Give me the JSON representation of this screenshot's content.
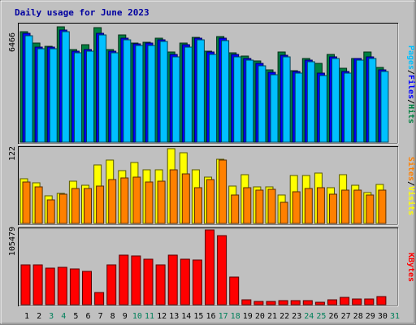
{
  "chart_data": [
    {
      "type": "bar",
      "title": "Daily usage for June 2023",
      "categories": [
        "1",
        "2",
        "3",
        "4",
        "5",
        "6",
        "7",
        "8",
        "9",
        "10",
        "11",
        "12",
        "13",
        "14",
        "15",
        "16",
        "17",
        "18",
        "19",
        "20",
        "21",
        "22",
        "23",
        "24",
        "25",
        "26",
        "27",
        "28",
        "29",
        "30",
        "31"
      ],
      "weekend_days": [
        "3",
        "4",
        "10",
        "11",
        "17",
        "18",
        "24",
        "25",
        "31"
      ],
      "ymax_label": "6466",
      "ylim": [
        0,
        6466
      ],
      "right_label": [
        "Pages",
        "Files",
        "Hits"
      ],
      "series": [
        {
          "name": "Hits",
          "color": "#008040",
          "values": [
            6200,
            5560,
            5380,
            6466,
            5200,
            5450,
            6400,
            5200,
            6020,
            5560,
            5600,
            5830,
            5050,
            5570,
            5860,
            5100,
            5900,
            5000,
            4830,
            4550,
            4040,
            5060,
            4000,
            4700,
            4400,
            4910,
            4140,
            4690,
            5050,
            4180,
            null
          ]
        },
        {
          "name": "Files",
          "color": "#0000ff",
          "values": [
            6080,
            5350,
            5320,
            6300,
            5120,
            5210,
            6100,
            5120,
            5840,
            5500,
            5540,
            5730,
            4900,
            5450,
            5830,
            5040,
            5810,
            4900,
            4700,
            4400,
            3900,
            4880,
            3950,
            4590,
            3850,
            4800,
            3950,
            4700,
            4790,
            4040,
            null
          ]
        },
        {
          "name": "Pages",
          "color": "#00c0ff",
          "values": [
            5980,
            5250,
            5220,
            6200,
            5020,
            5110,
            6000,
            5020,
            5740,
            5400,
            5440,
            5630,
            4800,
            5350,
            5730,
            4940,
            5710,
            4800,
            4600,
            4300,
            3800,
            4780,
            3850,
            4490,
            3750,
            4700,
            3850,
            4600,
            4690,
            3940,
            null
          ]
        }
      ]
    },
    {
      "type": "bar",
      "categories": [
        "1",
        "2",
        "3",
        "4",
        "5",
        "6",
        "7",
        "8",
        "9",
        "10",
        "11",
        "12",
        "13",
        "14",
        "15",
        "16",
        "17",
        "18",
        "19",
        "20",
        "21",
        "22",
        "23",
        "24",
        "25",
        "26",
        "27",
        "28",
        "29",
        "30",
        "31"
      ],
      "ymax_label": "122",
      "ylim": [
        0,
        122
      ],
      "right_label": [
        "Sites",
        "Visits"
      ],
      "series": [
        {
          "name": "Visits",
          "color": "#ffff00",
          "values": [
            73,
            66,
            45,
            49,
            69,
            62,
            95,
            103,
            86,
            99,
            87,
            87,
            122,
            115,
            88,
            76,
            105,
            61,
            79,
            60,
            60,
            47,
            78,
            78,
            82,
            59,
            80,
            62,
            50,
            64,
            null
          ]
        },
        {
          "name": "Sites",
          "color": "#ff8000",
          "values": [
            68,
            60,
            38,
            48,
            57,
            57,
            61,
            71,
            74,
            75,
            68,
            69,
            88,
            81,
            58,
            72,
            104,
            47,
            58,
            55,
            56,
            35,
            52,
            57,
            58,
            48,
            54,
            55,
            47,
            55,
            null
          ]
        }
      ]
    },
    {
      "type": "bar",
      "categories": [
        "1",
        "2",
        "3",
        "4",
        "5",
        "6",
        "7",
        "8",
        "9",
        "10",
        "11",
        "12",
        "13",
        "14",
        "15",
        "16",
        "17",
        "18",
        "19",
        "20",
        "21",
        "22",
        "23",
        "24",
        "25",
        "26",
        "27",
        "28",
        "29",
        "30",
        "31"
      ],
      "ymax_label": "105479",
      "ylim": [
        0,
        105479
      ],
      "right_label": [
        "KBytes"
      ],
      "series": [
        {
          "name": "KBytes",
          "color": "#ff0000",
          "values": [
            56500,
            56500,
            51700,
            53000,
            50000,
            47300,
            17500,
            56500,
            70000,
            68800,
            64400,
            56500,
            70500,
            64600,
            63300,
            105479,
            98000,
            39000,
            7000,
            4600,
            4600,
            5800,
            5800,
            6000,
            3300,
            6500,
            9800,
            8200,
            8000,
            11800,
            null
          ]
        }
      ]
    }
  ]
}
